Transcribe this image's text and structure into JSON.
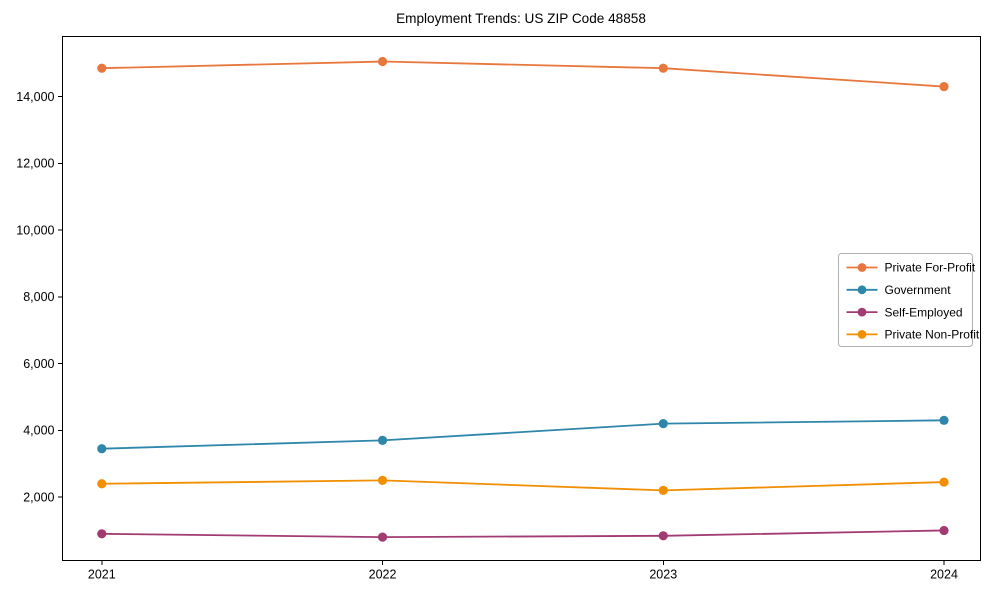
{
  "title": "Employment Trends: US ZIP Code 48858",
  "chart_data": {
    "type": "line",
    "title": "Employment Trends: US ZIP Code 48858",
    "x": [
      2021,
      2022,
      2023,
      2024
    ],
    "xtick_labels": [
      "2021",
      "2022",
      "2023",
      "2024"
    ],
    "series": [
      {
        "name": "Private For-Profit",
        "color": "#E8773D",
        "values": [
          14850,
          15050,
          14850,
          14300
        ]
      },
      {
        "name": "Government",
        "color": "#2E86AB",
        "values": [
          3450,
          3700,
          4200,
          4300
        ]
      },
      {
        "name": "Self-Employed",
        "color": "#A23B72",
        "values": [
          900,
          800,
          840,
          1000
        ]
      },
      {
        "name": "Private Non-Profit",
        "color": "#F18F01",
        "values": [
          2400,
          2500,
          2200,
          2450
        ]
      }
    ],
    "yticks": [
      2000,
      4000,
      6000,
      8000,
      10000,
      12000,
      14000
    ],
    "ytick_labels": [
      "2,000",
      "4,000",
      "6,000",
      "8,000",
      "10,000",
      "12,000",
      "14,000"
    ],
    "xlim": [
      2020.86,
      2024.13
    ],
    "ylim": [
      100,
      15800
    ],
    "grid": false,
    "legend_position": "center right",
    "marker": "circle",
    "axis_color": "#000000",
    "legend_border_color": "#b0b0b0",
    "background_color": "#ffffff"
  }
}
